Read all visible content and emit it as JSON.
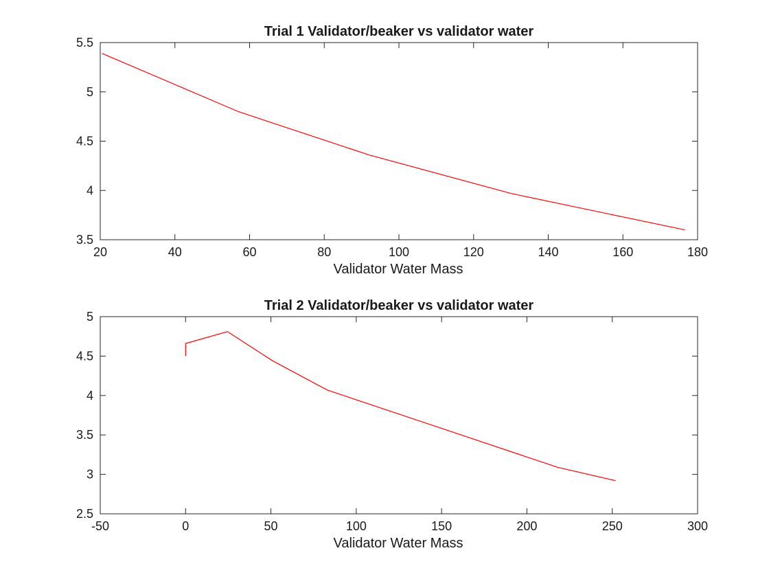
{
  "chart_data": [
    {
      "type": "line",
      "title": "Trial 1 Validator/beaker vs validator water",
      "xlabel": "Validator Water Mass",
      "ylabel": "",
      "xlim": [
        20,
        180
      ],
      "ylim": [
        3.5,
        5.5
      ],
      "xticks": [
        20,
        40,
        60,
        80,
        100,
        120,
        140,
        160,
        180
      ],
      "yticks": [
        3.5,
        4,
        4.5,
        5,
        5.5
      ],
      "xtick_labels": [
        "20",
        "40",
        "60",
        "80",
        "100",
        "120",
        "140",
        "160",
        "180"
      ],
      "ytick_labels": [
        "3.5",
        "4",
        "4.5",
        "5",
        "5.5"
      ],
      "grid": false,
      "series": [
        {
          "color": "#ff0000",
          "x": [
            20.5,
            57,
            92,
            130,
            176.5
          ],
          "y": [
            5.39,
            4.8,
            4.36,
            3.97,
            3.6
          ]
        }
      ]
    },
    {
      "type": "line",
      "title": "Trial 2 Validator/beaker vs validator water",
      "xlabel": "Validator Water Mass",
      "ylabel": "",
      "xlim": [
        -50,
        300
      ],
      "ylim": [
        2.5,
        5
      ],
      "xticks": [
        -50,
        0,
        50,
        100,
        150,
        200,
        250,
        300
      ],
      "yticks": [
        2.5,
        3,
        3.5,
        4,
        4.5,
        5
      ],
      "xtick_labels": [
        "-50",
        "0",
        "50",
        "100",
        "150",
        "200",
        "250",
        "300"
      ],
      "ytick_labels": [
        "2.5",
        "3",
        "3.5",
        "4",
        "4.5",
        "5"
      ],
      "grid": false,
      "series": [
        {
          "color": "#ff0000",
          "x": [
            0,
            0,
            24.5,
            51,
            83,
            218,
            252
          ],
          "y": [
            4.5,
            4.66,
            4.81,
            4.44,
            4.07,
            3.09,
            2.92
          ]
        }
      ]
    }
  ]
}
